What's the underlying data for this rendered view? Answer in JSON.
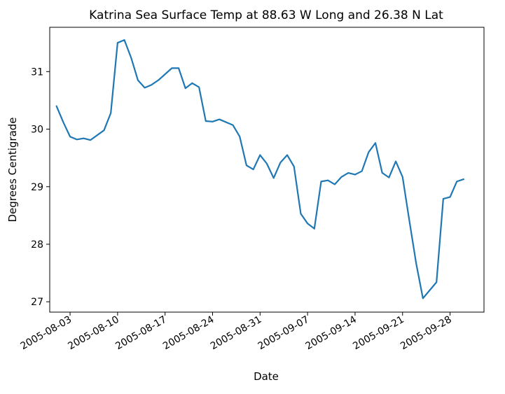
{
  "chart_data": {
    "type": "line",
    "title": "Katrina Sea Surface Temp at 88.63 W Long and 26.38 N Lat",
    "xlabel": "Date",
    "ylabel": "Degrees Centigrade",
    "xlim": [
      "2005-07-31",
      "2005-10-03"
    ],
    "ylim": [
      26.82,
      31.77
    ],
    "grid": false,
    "line_color": "#1f77b4",
    "x_ticks": [
      "2005-08-03",
      "2005-08-10",
      "2005-08-17",
      "2005-08-24",
      "2005-08-31",
      "2005-09-07",
      "2005-09-14",
      "2005-09-21",
      "2005-09-28"
    ],
    "y_ticks": [
      27,
      28,
      29,
      30,
      31
    ],
    "x": [
      "2005-08-01",
      "2005-08-02",
      "2005-08-03",
      "2005-08-04",
      "2005-08-05",
      "2005-08-06",
      "2005-08-08",
      "2005-08-09",
      "2005-08-10",
      "2005-08-11",
      "2005-08-12",
      "2005-08-13",
      "2005-08-14",
      "2005-08-15",
      "2005-08-16",
      "2005-08-18",
      "2005-08-19",
      "2005-08-20",
      "2005-08-21",
      "2005-08-22",
      "2005-08-23",
      "2005-08-24",
      "2005-08-25",
      "2005-08-27",
      "2005-08-28",
      "2005-08-29",
      "2005-08-30",
      "2005-08-31",
      "2005-09-01",
      "2005-09-02",
      "2005-09-03",
      "2005-09-04",
      "2005-09-05",
      "2005-09-06",
      "2005-09-07",
      "2005-09-08",
      "2005-09-09",
      "2005-09-10",
      "2005-09-11",
      "2005-09-12",
      "2005-09-13",
      "2005-09-14",
      "2005-09-15",
      "2005-09-16",
      "2005-09-17",
      "2005-09-18",
      "2005-09-19",
      "2005-09-20",
      "2005-09-21",
      "2005-09-22",
      "2005-09-23",
      "2005-09-24",
      "2005-09-26",
      "2005-09-27",
      "2005-09-28",
      "2005-09-29",
      "2005-09-30"
    ],
    "y": [
      30.4,
      30.12,
      29.87,
      29.82,
      29.84,
      29.81,
      29.98,
      30.28,
      31.5,
      31.55,
      31.24,
      30.85,
      30.72,
      30.77,
      30.85,
      31.06,
      31.06,
      30.71,
      30.8,
      30.73,
      30.14,
      30.13,
      30.17,
      30.07,
      29.87,
      29.37,
      29.3,
      29.55,
      29.4,
      29.15,
      29.42,
      29.55,
      29.35,
      28.53,
      28.36,
      28.27,
      29.09,
      29.11,
      29.04,
      29.17,
      29.24,
      29.21,
      29.27,
      29.6,
      29.76,
      29.24,
      29.16,
      29.44,
      29.17,
      28.41,
      27.67,
      27.06,
      27.34,
      28.79,
      28.82,
      29.09,
      29.13
    ]
  }
}
